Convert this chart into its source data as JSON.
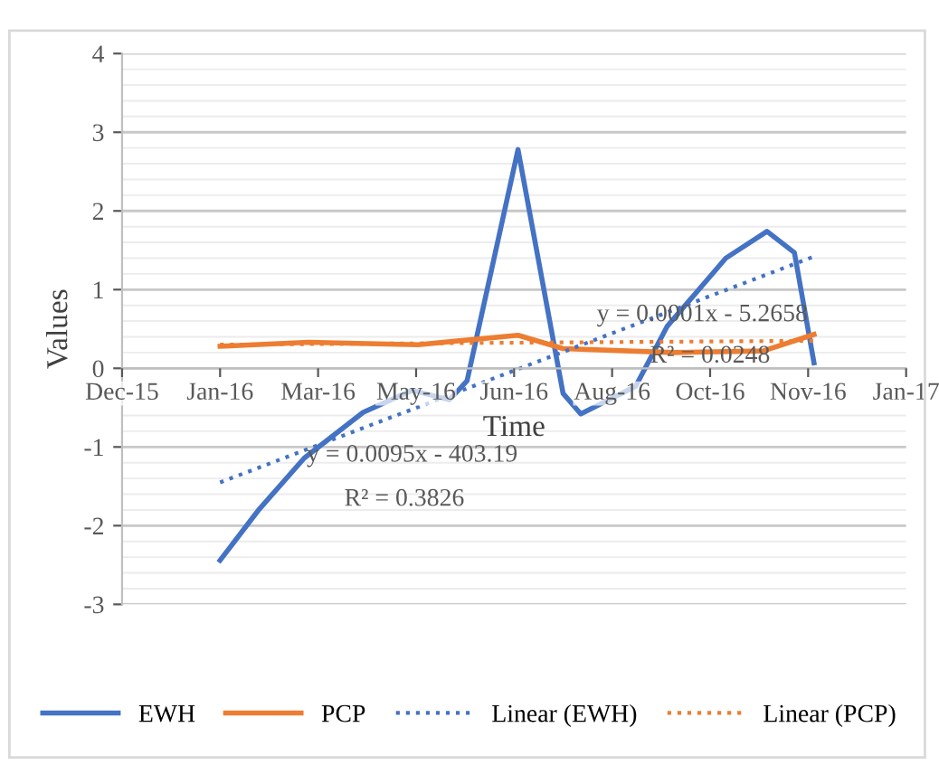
{
  "chart_data": {
    "type": "line",
    "xlabel": "Time",
    "ylabel": "Values",
    "series": [
      {
        "name": "EWH",
        "color": "#4472c4",
        "x": [
          "2016-01-25",
          "2016-02-14",
          "2016-03-08",
          "2016-04-07",
          "2016-05-02",
          "2016-05-21",
          "2016-05-30",
          "2016-06-25",
          "2016-07-18",
          "2016-07-27",
          "2016-08-24",
          "2016-09-09",
          "2016-10-09",
          "2016-10-30",
          "2016-11-13",
          "2016-11-23"
        ],
        "values": [
          -2.44,
          -1.79,
          -1.14,
          -0.56,
          -0.28,
          -0.4,
          -0.16,
          2.78,
          -0.32,
          -0.58,
          -0.23,
          0.53,
          1.4,
          1.74,
          1.47,
          0.07
        ]
      },
      {
        "name": "PCP",
        "color": "#ed7d31",
        "x": [
          "2016-01-25",
          "2016-03-10",
          "2016-05-05",
          "2016-06-25",
          "2016-07-18",
          "2016-09-12",
          "2016-10-28",
          "2016-11-23"
        ],
        "values": [
          0.28,
          0.33,
          0.3,
          0.42,
          0.25,
          0.2,
          0.22,
          0.43
        ]
      },
      {
        "name": "Linear (EWH)",
        "color": "#4472c4",
        "line_style": "dotted",
        "x": [
          "2016-01-25",
          "2016-11-24"
        ],
        "values": [
          -1.45,
          1.43
        ]
      },
      {
        "name": "Linear (PCP)",
        "color": "#ed7d31",
        "line_style": "dotted",
        "x": [
          "2016-01-25",
          "2016-11-24"
        ],
        "values": [
          0.3,
          0.35
        ]
      }
    ],
    "xlim": [
      "2015-12-06",
      "2017-01-09"
    ],
    "xticks": [
      {
        "value": "2015-12-06",
        "label": "Dec-15"
      },
      {
        "value": "2016-01-25",
        "label": "Jan-16"
      },
      {
        "value": "2016-03-15",
        "label": "Mar-16"
      },
      {
        "value": "2016-05-04",
        "label": "May-16"
      },
      {
        "value": "2016-06-23",
        "label": "Jun-16"
      },
      {
        "value": "2016-08-12",
        "label": "Aug-16"
      },
      {
        "value": "2016-10-01",
        "label": "Oct-16"
      },
      {
        "value": "2016-11-20",
        "label": "Nov-16"
      },
      {
        "value": "2017-01-09",
        "label": "Jan-17"
      }
    ],
    "ylim": [
      -3,
      4
    ],
    "yticks": [
      -3,
      -2,
      -1,
      0,
      1,
      2,
      3,
      4
    ],
    "grid": "y",
    "legend": "bottom",
    "line_style": "solid",
    "annotations": [
      "y = 0.0095x - 403.19",
      "R² = 0.3826",
      "y = 0.0001x - 5.2658",
      "R² = 0.0248"
    ]
  }
}
